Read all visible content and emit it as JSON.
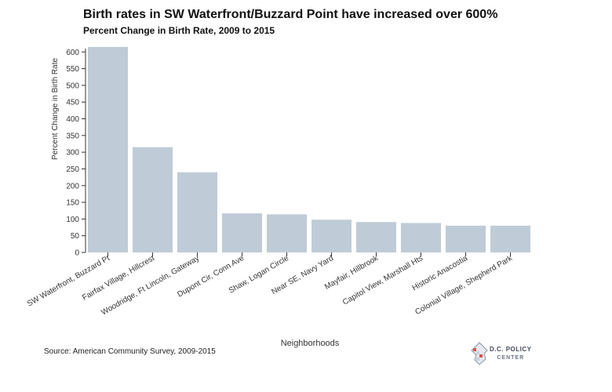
{
  "chart_data": {
    "type": "bar",
    "title": "Birth rates in SW Waterfront/Buzzard Point have increased over 600%",
    "subtitle": "Percent Change in Birth Rate, 2009 to 2015",
    "xlabel": "Neighborhoods",
    "ylabel": "Percent Change in Birth Rate",
    "ylim": [
      0,
      610
    ],
    "yticks": [
      0,
      50,
      100,
      150,
      200,
      250,
      300,
      350,
      400,
      450,
      500,
      550,
      600
    ],
    "grid": false,
    "categories": [
      "SW Waterfront, Buzzard Pt",
      "Fairfax Village, Hillcrest",
      "Woodridge, Ft Lincoln, Gateway",
      "Dupont Cir, Conn Ave",
      "Shaw, Logan Circle",
      "Near SE, Navy Yard",
      "Mayfair, Hillbrook",
      "Capitol View, Marshall Hts",
      "Historic Anacostia",
      "Colonial Village, Shepherd Park"
    ],
    "values": [
      615,
      315,
      240,
      117,
      114,
      98,
      91,
      88,
      80,
      80
    ],
    "bar_color": "#bfcbd7"
  },
  "source": "Source: American Community Survey, 2009-2015",
  "logo": {
    "line1": "D.C. POLICY",
    "line2": "CENTER"
  }
}
